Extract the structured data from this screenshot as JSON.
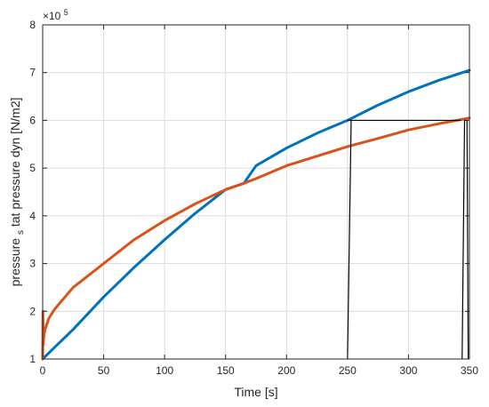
{
  "chart_data": {
    "type": "line",
    "title": "",
    "xlabel": "Time [s]",
    "ylabel": "pressure_stat pressure dyn [N/m2]",
    "ylabel_parts": {
      "before": "pressure",
      "subscript": "s",
      "after": "tat pressure dyn [N/m2]"
    },
    "y_exponent": {
      "base": "×10",
      "power": "5"
    },
    "xlim": [
      0,
      350
    ],
    "ylim": [
      1,
      8
    ],
    "x_ticks": [
      0,
      50,
      100,
      150,
      200,
      250,
      300,
      350
    ],
    "y_ticks": [
      1,
      2,
      3,
      4,
      5,
      6,
      7,
      8
    ],
    "grid": true,
    "series": [
      {
        "color": "#0072BD",
        "x": [
          0,
          10,
          25,
          50,
          75,
          100,
          125,
          150,
          165,
          175,
          200,
          225,
          250,
          275,
          300,
          325,
          350
        ],
        "y": [
          1.0,
          1.25,
          1.62,
          2.3,
          2.92,
          3.5,
          4.05,
          4.55,
          4.68,
          5.05,
          5.42,
          5.73,
          6.0,
          6.32,
          6.6,
          6.84,
          7.05
        ]
      },
      {
        "color": "#D95319",
        "x": [
          0,
          0.2,
          0.5,
          1,
          2,
          5,
          10,
          25,
          50,
          75,
          100,
          125,
          150,
          165,
          175,
          200,
          225,
          250,
          275,
          300,
          325,
          350
        ],
        "y": [
          1.0,
          2.0,
          1.3,
          1.5,
          1.62,
          1.85,
          2.05,
          2.5,
          3.0,
          3.5,
          3.9,
          4.25,
          4.55,
          4.68,
          4.78,
          5.05,
          5.25,
          5.45,
          5.62,
          5.8,
          5.93,
          6.05
        ]
      }
    ],
    "annotations": [
      {
        "x": [
          250,
          253,
          253,
          250
        ],
        "y": [
          1.0,
          6.0,
          6.0,
          1.0
        ]
      },
      {
        "x": [
          250,
          343
        ],
        "y": [
          6.0,
          6.0
        ]
      },
      {
        "x": [
          344,
          346,
          348,
          349
        ],
        "y": [
          1.0,
          6.0,
          6.0,
          1.0
        ]
      }
    ]
  }
}
